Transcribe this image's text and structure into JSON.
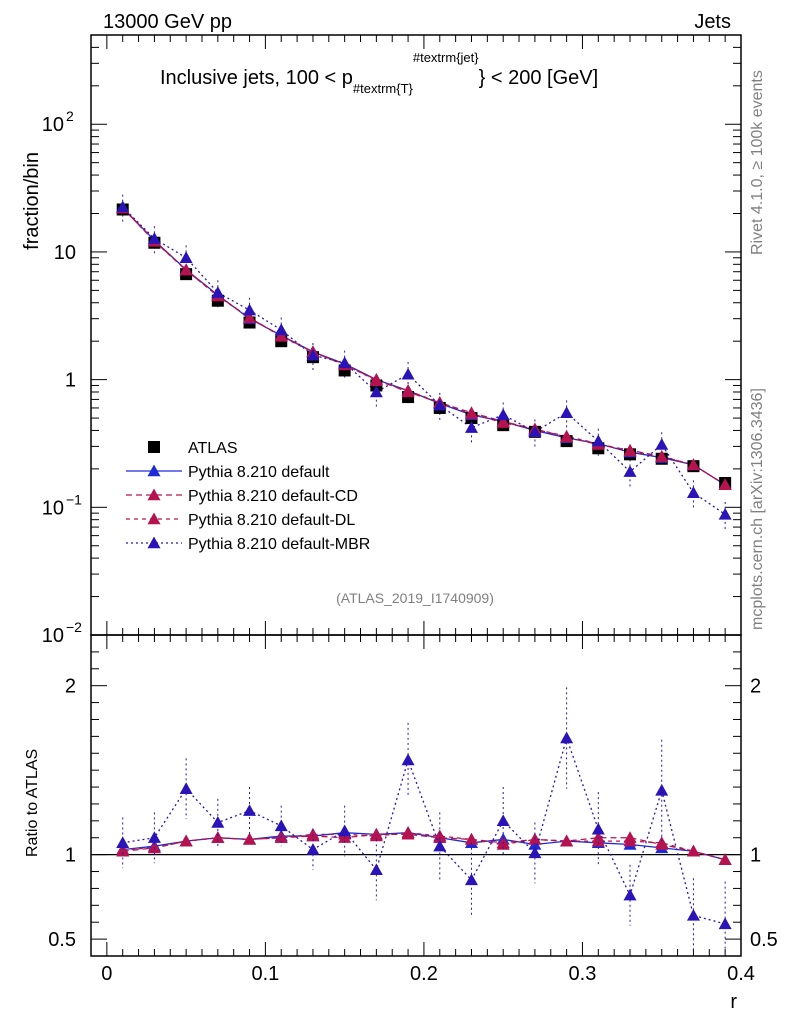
{
  "header": {
    "left": "13000 GeV pp",
    "right": "Jets",
    "side_top": "Rivet 4.1.0, ≥ 100k events",
    "side_bottom": "mcplots.cern.ch [arXiv:1306.3436]"
  },
  "chart_data": {
    "type": "line",
    "title_main": "Inclusive jets, 100 < p",
    "title_sub": "#textrm{T}",
    "title_sup": "#textrm{jet}",
    "title_tail": "} < 200 [GeV]",
    "reference": "(ATLAS_2019_I1740909)",
    "ylabel": "fraction/bin",
    "ratio_ylabel": "Ratio to ATLAS",
    "xlabel": "r",
    "yscale": "log",
    "ylim": [
      0.01,
      500
    ],
    "ratio_ylim": [
      0.4,
      2.3
    ],
    "xlim": [
      -0.01,
      0.4
    ],
    "x_ticks": [
      {
        "v": 0,
        "label": "0"
      },
      {
        "v": 0.1,
        "label": "0.1"
      },
      {
        "v": 0.2,
        "label": "0.2"
      },
      {
        "v": 0.3,
        "label": "0.3"
      },
      {
        "v": 0.4,
        "label": "0.4"
      }
    ],
    "y_ticks": [
      {
        "v": 100,
        "label": "10",
        "exp": "2"
      },
      {
        "v": 10,
        "label": "10",
        "exp": ""
      },
      {
        "v": 1,
        "label": "1",
        "exp": ""
      },
      {
        "v": 0.1,
        "label": "10",
        "exp": "−1"
      },
      {
        "v": 0.01,
        "label": "10",
        "exp": "−2"
      }
    ],
    "ratio_ticks": [
      {
        "v": 2,
        "label": "2"
      },
      {
        "v": 1,
        "label": "1"
      },
      {
        "v": 0.5,
        "label": "0.5"
      }
    ],
    "x": [
      0.01,
      0.03,
      0.05,
      0.07,
      0.09,
      0.11,
      0.13,
      0.15,
      0.17,
      0.19,
      0.21,
      0.23,
      0.25,
      0.27,
      0.29,
      0.31,
      0.33,
      0.35,
      0.37,
      0.39
    ],
    "series": [
      {
        "name": "ATLAS",
        "kind": "data",
        "marker": "square",
        "color": "#000000",
        "values": [
          21.5,
          11.8,
          6.7,
          4.15,
          2.8,
          2.0,
          1.5,
          1.18,
          0.9,
          0.73,
          0.6,
          0.5,
          0.44,
          0.39,
          0.33,
          0.29,
          0.26,
          0.24,
          0.21,
          0.155
        ]
      },
      {
        "name": "Pythia 8.210 default",
        "kind": "mc",
        "marker": "triangle",
        "color": "#1c2bd6",
        "dash": "",
        "values": [
          22.2,
          12.3,
          7.25,
          4.6,
          3.0,
          2.22,
          1.65,
          1.33,
          1.0,
          0.82,
          0.65,
          0.53,
          0.47,
          0.4,
          0.35,
          0.315,
          0.27,
          0.245,
          0.215,
          0.15
        ],
        "ratio": [
          1.03,
          1.05,
          1.08,
          1.1,
          1.09,
          1.11,
          1.11,
          1.13,
          1.12,
          1.13,
          1.1,
          1.07,
          1.09,
          1.06,
          1.08,
          1.07,
          1.06,
          1.04,
          1.02,
          0.97
        ]
      },
      {
        "name": "Pythia 8.210 default-CD",
        "kind": "mc",
        "marker": "triangle",
        "color": "#b5134f",
        "dash": "6,4",
        "values": [
          22.0,
          12.2,
          7.2,
          4.55,
          3.05,
          2.2,
          1.65,
          1.3,
          1.0,
          0.8,
          0.66,
          0.55,
          0.47,
          0.41,
          0.355,
          0.31,
          0.28,
          0.25,
          0.215,
          0.15
        ],
        "ratio": [
          1.02,
          1.04,
          1.08,
          1.1,
          1.09,
          1.1,
          1.11,
          1.1,
          1.12,
          1.12,
          1.1,
          1.09,
          1.07,
          1.09,
          1.08,
          1.1,
          1.1,
          1.06,
          1.02,
          0.97
        ]
      },
      {
        "name": "Pythia 8.210 default-DL",
        "kind": "mc",
        "marker": "triangle",
        "color": "#b5134f",
        "dash": "4,4",
        "values": [
          22.1,
          12.1,
          7.2,
          4.5,
          3.05,
          2.18,
          1.64,
          1.32,
          0.98,
          0.82,
          0.66,
          0.54,
          0.46,
          0.41,
          0.36,
          0.315,
          0.275,
          0.25,
          0.215,
          0.15
        ],
        "ratio": [
          1.03,
          1.04,
          1.08,
          1.1,
          1.09,
          1.1,
          1.12,
          1.12,
          1.11,
          1.13,
          1.11,
          1.09,
          1.06,
          1.09,
          1.08,
          1.08,
          1.08,
          1.07,
          1.02,
          0.97
        ]
      },
      {
        "name": "Pythia 8.210 default-MBR",
        "kind": "mc",
        "marker": "triangle",
        "color": "#2a14b8",
        "dash": "2,3",
        "values": [
          22.5,
          12.7,
          9.0,
          4.8,
          3.5,
          2.45,
          1.55,
          1.35,
          0.8,
          1.1,
          0.63,
          0.42,
          0.53,
          0.39,
          0.55,
          0.33,
          0.19,
          0.31,
          0.13,
          0.088
        ],
        "ratio": [
          1.07,
          1.1,
          1.39,
          1.19,
          1.26,
          1.17,
          1.03,
          1.14,
          0.91,
          1.56,
          1.05,
          0.85,
          1.2,
          1.01,
          1.69,
          1.15,
          0.76,
          1.38,
          0.64,
          0.59
        ],
        "ratio_err": [
          0.15,
          0.15,
          0.18,
          0.14,
          0.14,
          0.12,
          0.12,
          0.15,
          0.18,
          0.22,
          0.2,
          0.22,
          0.2,
          0.18,
          0.3,
          0.22,
          0.18,
          0.3,
          0.22,
          0.25
        ]
      }
    ],
    "legend": [
      {
        "label": "ATLAS"
      },
      {
        "label": "Pythia 8.210 default"
      },
      {
        "label": "Pythia 8.210 default-CD"
      },
      {
        "label": "Pythia 8.210 default-DL"
      },
      {
        "label": "Pythia 8.210 default-MBR"
      }
    ]
  }
}
